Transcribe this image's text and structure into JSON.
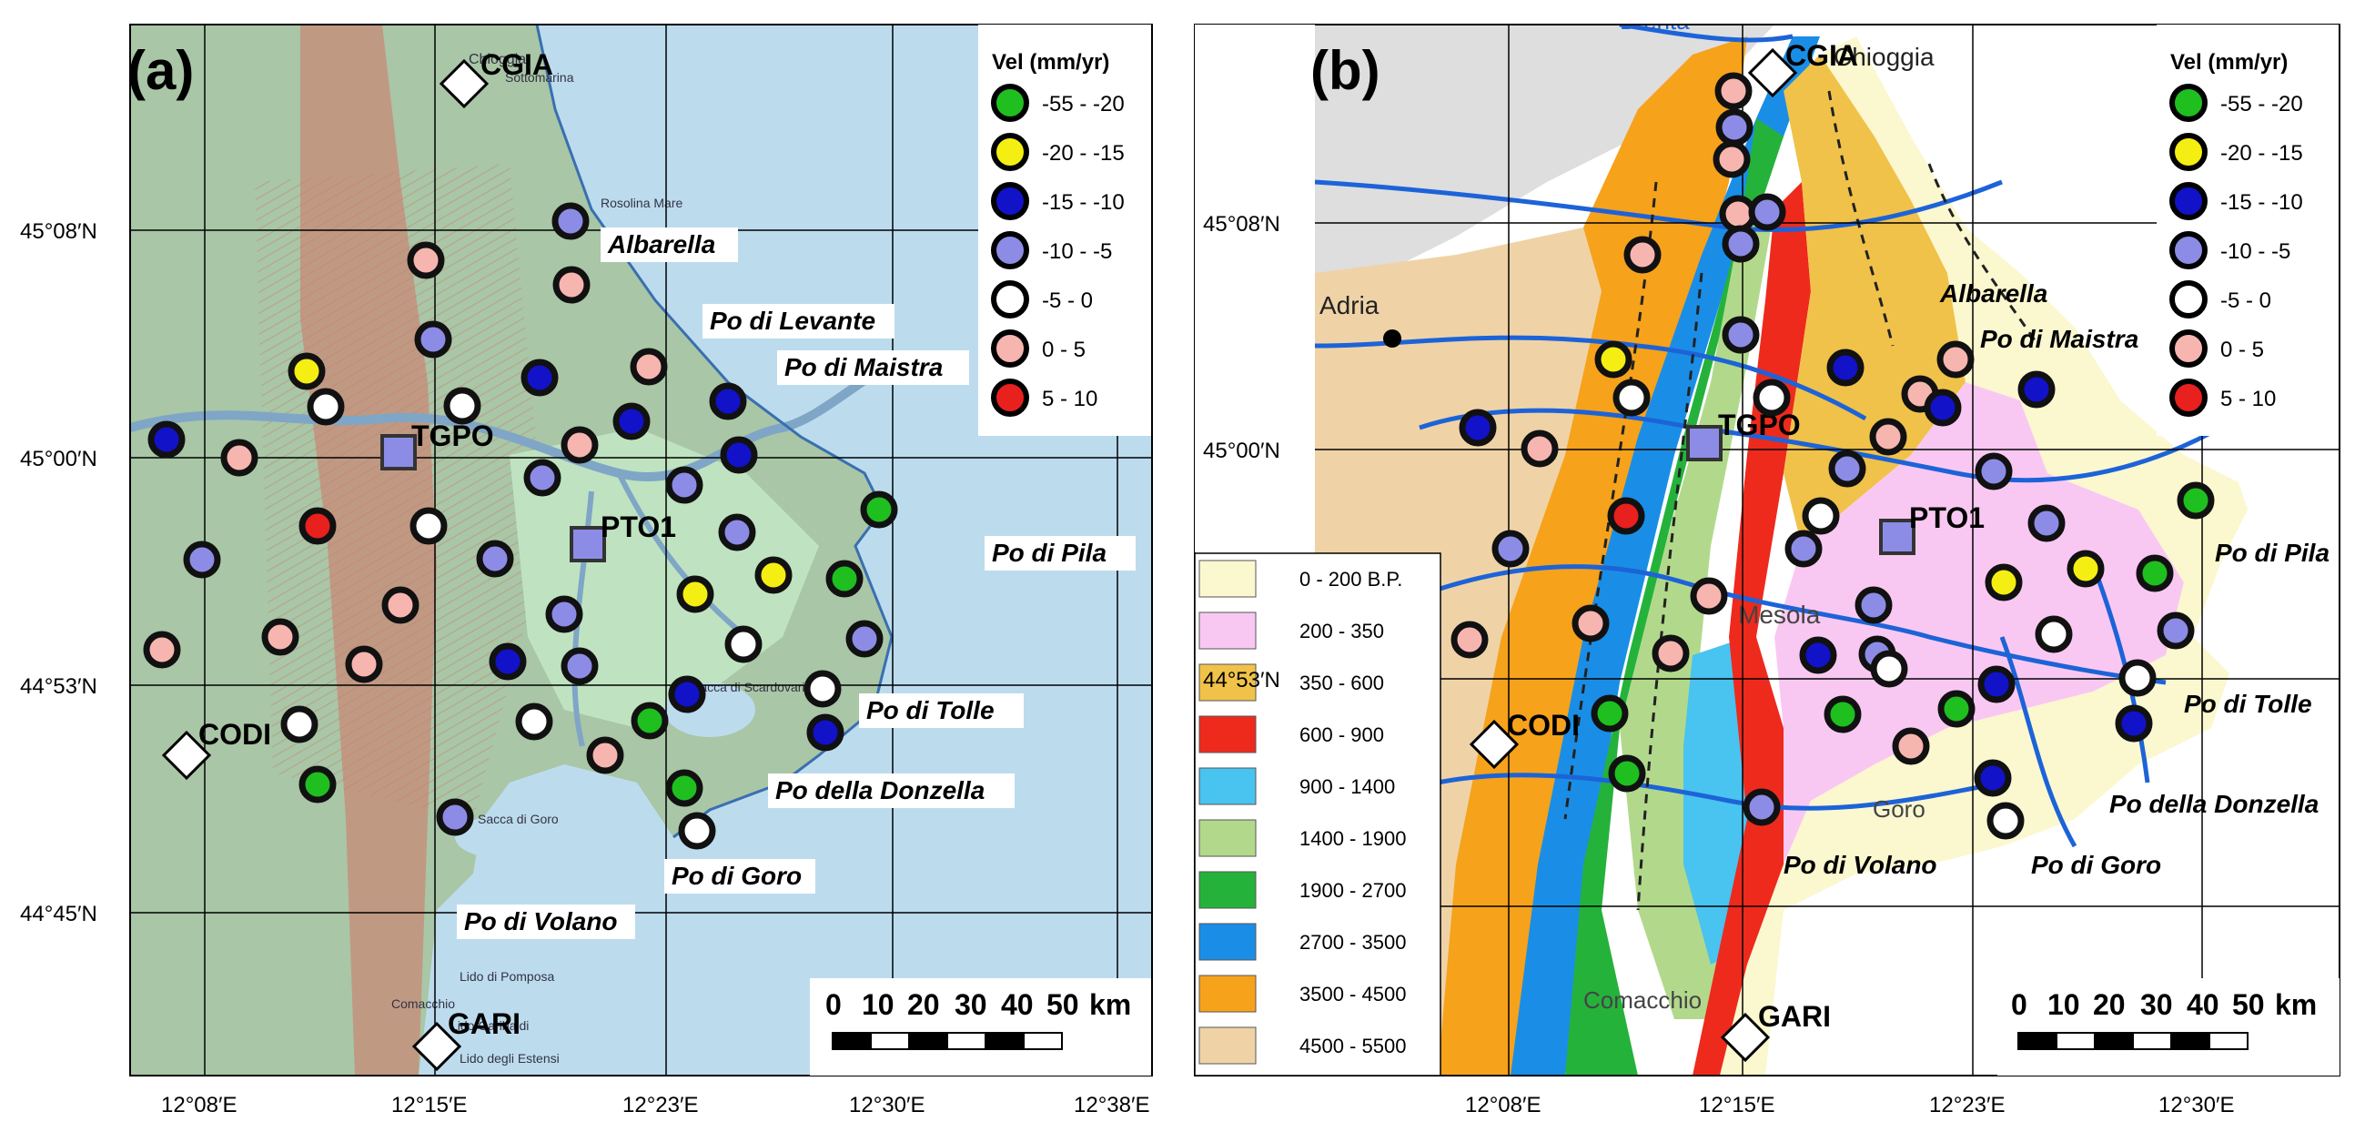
{
  "panel_a": {
    "label": "(a)",
    "legend_title": "Vel (mm/yr)",
    "scale_numbers": [
      "0",
      "10",
      "20",
      "30",
      "40",
      "50",
      "km"
    ],
    "lat_labels": [
      "45°08′N",
      "45°00′N",
      "44°53′N",
      "44°45′N"
    ],
    "lon_labels": [
      "12°08′E",
      "12°15′E",
      "12°23′E",
      "12°30′E",
      "12°38′E"
    ],
    "stations": [
      "CGIA",
      "TGPO",
      "PTO1",
      "CODI",
      "GARI"
    ],
    "places": [
      "Albarella",
      "Po di Levante",
      "Po di Maistra",
      "Po di Pila",
      "Po di Tolle",
      "Po della Donzella",
      "Po di Goro",
      "Po di Volano"
    ],
    "map_text": [
      "Chioggia",
      "Sottomarina",
      "Rosolina Mare",
      "Lido di Pomposa",
      "Comacchio",
      "Lido degli Estensi",
      "Lido Garibaldi",
      "Sacca di Goro",
      "Sacca di Scardovari"
    ]
  },
  "panel_b": {
    "label": "(b)",
    "legend_title": "Vel (mm/yr)",
    "scale_numbers": [
      "0",
      "10",
      "20",
      "30",
      "40",
      "50",
      "km"
    ],
    "lat_labels": [
      "45°08′N",
      "45°00′N",
      "44°53′N"
    ],
    "lon_labels": [
      "12°08′E",
      "12°15′E",
      "12°23′E",
      "12°30′E"
    ],
    "stations": [
      "CGIA",
      "TGPO",
      "PTO1",
      "CODI",
      "GARI"
    ],
    "places": [
      "Albarella",
      "Po di Maistra",
      "Po di Pila",
      "Po di Tolle",
      "Po della Donzella",
      "Po di Goro",
      "Po di Volano"
    ],
    "map_text": [
      "Brenta",
      "Chioggia",
      "Adria",
      "Mesola",
      "Goro",
      "Comacchio"
    ],
    "age_legend": [
      {
        "label": "0 - 200 B.P.",
        "color": "#fbf7cf"
      },
      {
        "label": "200 - 350",
        "color": "#f9c8f2"
      },
      {
        "label": "350 - 600",
        "color": "#f0c24a"
      },
      {
        "label": "600 - 900",
        "color": "#ee2a1d"
      },
      {
        "label": "900 - 1400",
        "color": "#49c3ef"
      },
      {
        "label": "1400 - 1900",
        "color": "#b2d98b"
      },
      {
        "label": "1900 - 2700",
        "color": "#25b23b"
      },
      {
        "label": "2700 - 3500",
        "color": "#1a8ee6"
      },
      {
        "label": "3500 - 4500",
        "color": "#f6a21b"
      },
      {
        "label": "4500 - 5500",
        "color": "#efd3a6"
      }
    ]
  },
  "velocity_classes": [
    {
      "label": "-55 - -20",
      "color": "#1fbf1f"
    },
    {
      "label": "-20 - -15",
      "color": "#f4ee12"
    },
    {
      "label": "-15 - -10",
      "color": "#1212c8"
    },
    {
      "label": "-10 - -5",
      "color": "#8c8ce6"
    },
    {
      "label": "-5 - 0",
      "color": "#ffffff"
    },
    {
      "label": "0 - 5",
      "color": "#f7b5b0"
    },
    {
      "label": "5 - 10",
      "color": "#e8201e"
    }
  ]
}
